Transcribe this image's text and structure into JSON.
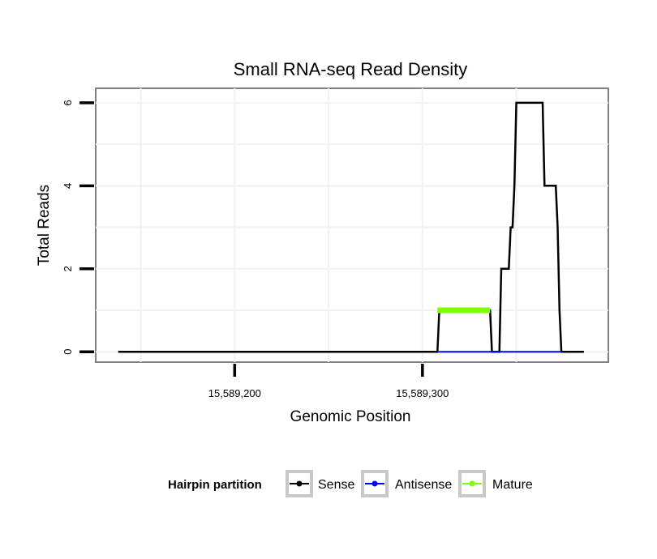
{
  "chart_data": {
    "type": "line",
    "title": "Small RNA-seq Read Density",
    "xlabel": "Genomic Position",
    "ylabel": "Total Reads",
    "xlim": [
      15589126,
      15589399
    ],
    "ylim": [
      -0.25,
      6.35
    ],
    "x_ticks": [
      15589200,
      15589300
    ],
    "x_tick_labels": [
      "15,589,200",
      "15,589,300"
    ],
    "y_ticks": [
      0,
      2,
      4,
      6
    ],
    "y_tick_labels": [
      "0",
      "2",
      "4",
      "6"
    ],
    "legend": {
      "title": "Hairpin partition",
      "position": "bottom"
    },
    "series": [
      {
        "name": "Sense",
        "color": "#000000",
        "points": [
          [
            15589138,
            0
          ],
          [
            15589308,
            0
          ],
          [
            15589309,
            1
          ],
          [
            15589336,
            1
          ],
          [
            15589337,
            0
          ],
          [
            15589341,
            0
          ],
          [
            15589342,
            2
          ],
          [
            15589346,
            2
          ],
          [
            15589347,
            3
          ],
          [
            15589348,
            3
          ],
          [
            15589349,
            4
          ],
          [
            15589350,
            6
          ],
          [
            15589364,
            6
          ],
          [
            15589365,
            4
          ],
          [
            15589371,
            4
          ],
          [
            15589372,
            3
          ],
          [
            15589373,
            1
          ],
          [
            15589374,
            0
          ],
          [
            15589386,
            0
          ]
        ]
      },
      {
        "name": "Antisense",
        "color": "#0000ff",
        "points": [
          [
            15589308,
            0
          ],
          [
            15589374,
            0
          ]
        ]
      },
      {
        "name": "Mature",
        "color": "#7fff00",
        "points": [
          [
            15589308,
            1
          ],
          [
            15589336,
            1
          ]
        ]
      }
    ]
  }
}
